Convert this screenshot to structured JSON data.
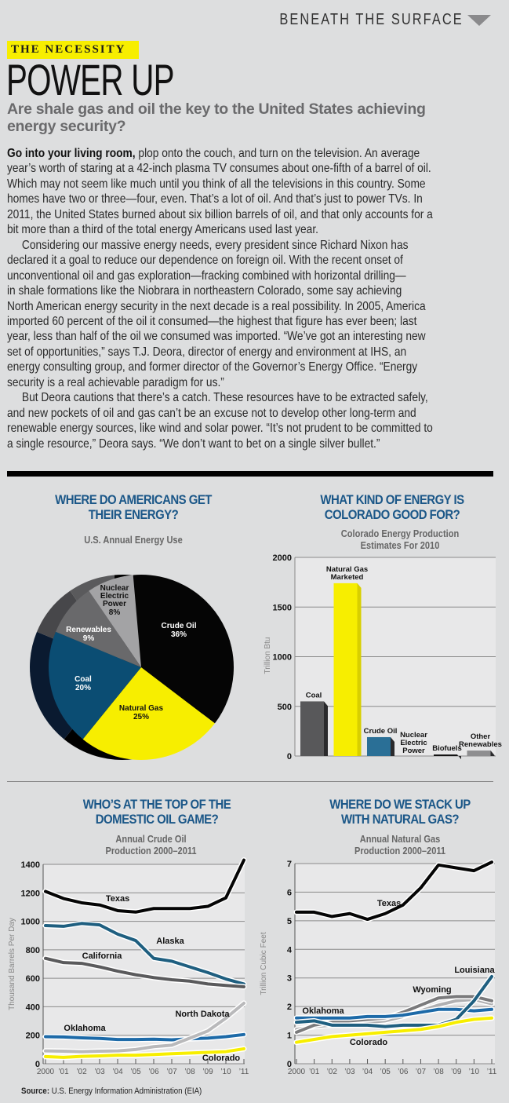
{
  "header": {
    "section_label": "BENEATH THE SURFACE",
    "kicker": "THE NECESSITY",
    "title": "POWER UP",
    "dek": "Are shale gas and oil the key to the United States achieving energy security?"
  },
  "article": {
    "lead": "Go into your living room,",
    "lines": [
      " plop onto the couch, and turn on the television. An average",
      "year’s worth of staring at a 42-inch plasma TV consumes about one-fifth of a barrel of oil.",
      "Which may not seem like much until you think of all the televisions in this country. Some",
      "homes have two or three—four, even. That’s a lot of oil. And that’s just to power TVs. In",
      "2011, the United States burned about six billion barrels of oil, and that only accounts for a",
      "bit more than a third of the total energy Americans used last year.",
      "Considering our massive energy needs, every president since Richard Nixon has",
      "declared it a goal to reduce our dependence on foreign oil. With the recent onset of",
      "unconventional oil and gas exploration—fracking combined with horizontal drilling—",
      "in shale formations like the Niobrara in northeastern Colorado, some say achieving",
      "North American energy security in the next decade is a real possibility. In 2005, America",
      "imported 60 percent of the oil it consumed—the highest that figure has ever been; last",
      "year, less than half of the oil we consumed was imported. “We’ve got an interesting new",
      "set of opportunities,” says T.J. Deora, director of energy and environment at IHS, an",
      "energy consulting group, and former director of the Governor’s Energy Office. “Energy",
      "security is a real achievable paradigm for us.”",
      "But Deora cautions that there’s a catch. These resources have to be extracted safely,",
      "and new pockets of oil and gas can’t be an excuse not to develop other long-term and",
      "renewable energy sources, like wind and solar power. “It’s not prudent to be committed to",
      "a single resource,” Deora says. “We don’t want to bet on a single silver bullet.”"
    ]
  },
  "source": {
    "label": "Source:",
    "text": " U.S. Energy Information Administration (EIA)"
  },
  "colors": {
    "accent_blue": "#1b5788",
    "yellow": "#f7ee00",
    "black": "#050505",
    "teal": "#0b4d73"
  },
  "chart_data": [
    {
      "type": "pie",
      "title": "WHERE DO AMERICANS GET THEIR ENERGY?",
      "subtitle": "U.S. Annual Energy Use",
      "slices": [
        {
          "label": "Crude Oil",
          "value": 36,
          "display": "36%",
          "color": "#050505",
          "text_color": "#ffffff"
        },
        {
          "label": "Natural Gas",
          "value": 25,
          "display": "25%",
          "color": "#f7ee00",
          "text_color": "#111111"
        },
        {
          "label": "Coal",
          "value": 20,
          "display": "20%",
          "color": "#0b4d73",
          "text_color": "#ffffff"
        },
        {
          "label": "Renewables",
          "value": 9,
          "display": "9%",
          "color": "#69696b",
          "text_color": "#ffffff"
        },
        {
          "label": "Nuclear Electric Power",
          "value": 8,
          "display": "8%",
          "color": "#a3a3a5",
          "text_color": "#111111"
        }
      ]
    },
    {
      "type": "bar",
      "title": "WHAT KIND OF ENERGY IS COLORADO GOOD FOR?",
      "subtitle": "Colorado Energy Production Estimates For 2010",
      "ylabel": "Trillion Btu",
      "ylim": [
        0,
        2000
      ],
      "yticks": [
        0,
        500,
        1000,
        1500,
        2000
      ],
      "grid": true,
      "categories": [
        "Coal",
        "Natural Gas Marketed",
        "Crude Oil",
        "Nuclear Electric Power",
        "Biofuels",
        "Other Renewables"
      ],
      "values": [
        550,
        1740,
        190,
        0,
        15,
        55
      ],
      "colors": [
        "#58585a",
        "#f7ee00",
        "#2a6f96",
        "#888888",
        "#111111",
        "#8e8e90"
      ]
    },
    {
      "type": "line",
      "title": "WHO’S AT THE TOP OF THE DOMESTIC OIL GAME?",
      "subtitle": "Annual Crude Oil Production 2000–2011",
      "ylabel": "Thousand Barrels Per Day",
      "ylim": [
        0,
        1400
      ],
      "yticks": [
        0,
        200,
        400,
        600,
        800,
        1000,
        1200,
        1400
      ],
      "grid": true,
      "x": [
        "2000",
        "’01",
        "’02",
        "’03",
        "’04",
        "’05",
        "’06",
        "’07",
        "’08",
        "’09",
        "’10",
        "’11"
      ],
      "series": [
        {
          "name": "Texas",
          "color": "#050505",
          "values": [
            1210,
            1160,
            1130,
            1115,
            1075,
            1065,
            1090,
            1090,
            1090,
            1105,
            1165,
            1430
          ]
        },
        {
          "name": "Alaska",
          "color": "#1f5f80",
          "values": [
            970,
            965,
            985,
            975,
            910,
            865,
            740,
            720,
            680,
            640,
            595,
            560
          ]
        },
        {
          "name": "California",
          "color": "#5a5a5c",
          "values": [
            740,
            710,
            705,
            680,
            650,
            625,
            605,
            590,
            580,
            560,
            550,
            540
          ]
        },
        {
          "name": "Oklahoma",
          "color": "#1d6aa8",
          "values": [
            190,
            188,
            182,
            178,
            170,
            170,
            172,
            168,
            175,
            180,
            190,
            205
          ]
        },
        {
          "name": "North Dakota",
          "color": "#b9b9bb",
          "values": [
            90,
            88,
            85,
            88,
            90,
            100,
            120,
            130,
            180,
            230,
            320,
            425
          ]
        },
        {
          "name": "Colorado",
          "color": "#f7ee00",
          "values": [
            50,
            45,
            52,
            55,
            60,
            60,
            65,
            70,
            75,
            80,
            85,
            105
          ]
        }
      ]
    },
    {
      "type": "line",
      "title": "WHERE DO WE STACK UP WITH NATURAL GAS?",
      "subtitle": "Annual Natural Gas Production 2000–2011",
      "ylabel": "Trillion Cubic Feet",
      "ylim": [
        0,
        7
      ],
      "yticks": [
        0,
        1,
        2,
        3,
        4,
        5,
        6,
        7
      ],
      "grid": true,
      "x": [
        "2000",
        "’01",
        "’02",
        "’03",
        "’04",
        "’05",
        "’06",
        "’07",
        "’08",
        "’09",
        "’10",
        "’11"
      ],
      "series": [
        {
          "name": "Texas",
          "color": "#050505",
          "values": [
            5.3,
            5.3,
            5.15,
            5.25,
            5.05,
            5.25,
            5.55,
            6.15,
            6.95,
            6.85,
            6.75,
            7.05
          ]
        },
        {
          "color": "#b0b0b2",
          "values": [
            1.2,
            1.3,
            1.35,
            1.4,
            1.45,
            1.5,
            1.65,
            1.85,
            2.05,
            2.2,
            2.25,
            2.1
          ]
        },
        {
          "name": "Wyoming",
          "color": "#7a7a7c",
          "values": [
            1.1,
            1.35,
            1.45,
            1.5,
            1.55,
            1.6,
            1.8,
            2.05,
            2.3,
            2.35,
            2.35,
            2.2
          ]
        },
        {
          "name": "Oklahoma",
          "color": "#1d6aa8",
          "values": [
            1.6,
            1.6,
            1.6,
            1.6,
            1.65,
            1.65,
            1.7,
            1.8,
            1.9,
            1.9,
            1.85,
            1.9
          ]
        },
        {
          "name": "Louisiana",
          "color": "#1f5f80",
          "values": [
            1.45,
            1.5,
            1.35,
            1.35,
            1.35,
            1.3,
            1.35,
            1.35,
            1.35,
            1.55,
            2.2,
            3.05
          ]
        },
        {
          "name": "Colorado",
          "color": "#f7ee00",
          "values": [
            0.75,
            0.85,
            0.95,
            1.0,
            1.05,
            1.1,
            1.15,
            1.2,
            1.3,
            1.45,
            1.55,
            1.6
          ]
        }
      ]
    }
  ]
}
